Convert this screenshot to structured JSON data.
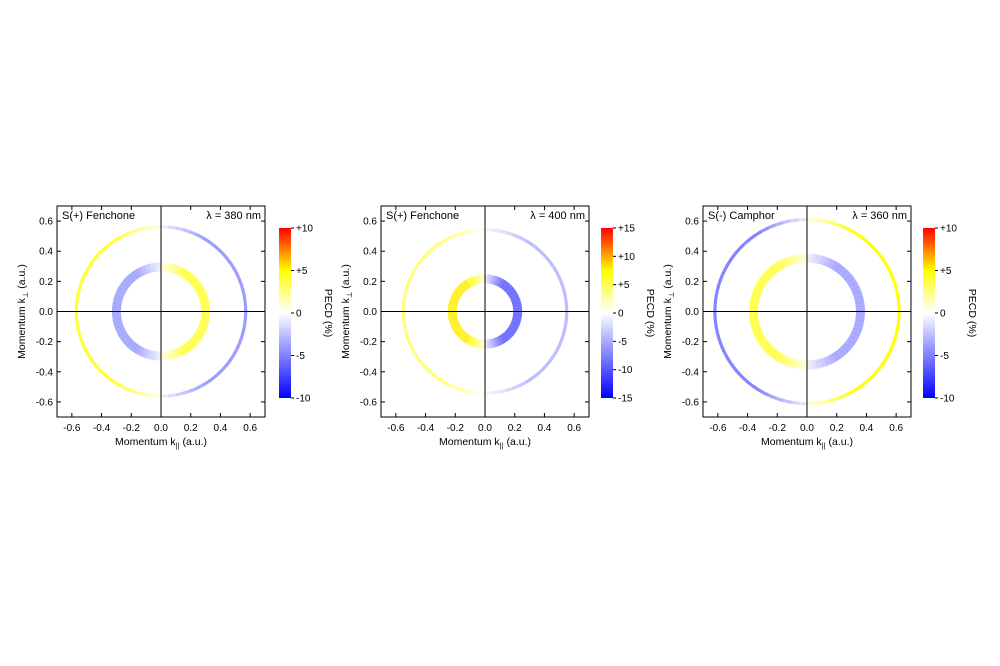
{
  "chart_data": [
    {
      "type": "heatmap",
      "title": "S(+) Fenchone",
      "wavelength": "λ = 380 nm",
      "xlabel": "Momentum k",
      "xlabel_sub": "||",
      "xlabel_unit": " (a.u.)",
      "ylabel": "Momentum k",
      "ylabel_sub": "⊥",
      "ylabel_unit": " (a.u.)",
      "xlim": [
        -0.7,
        0.7
      ],
      "ylim": [
        -0.7,
        0.7
      ],
      "xticks": [
        "-0.6",
        "-0.4",
        "-0.2",
        "0.0",
        "0.2",
        "0.4",
        "0.6"
      ],
      "yticks": [
        "0.6",
        "0.4",
        "0.2",
        "0.0",
        "-0.2",
        "-0.4",
        "-0.6"
      ],
      "colorbar": {
        "label": "PECD (%)",
        "range": [
          -10,
          10
        ],
        "ticks": [
          "+10",
          "+5",
          "0",
          "-5",
          "-10"
        ]
      },
      "rings": [
        {
          "radius": 0.57,
          "pecd_left": 4,
          "pecd_right": -4
        },
        {
          "radius": 0.3,
          "pecd_left": -4,
          "pecd_right": 4
        }
      ]
    },
    {
      "type": "heatmap",
      "title": "S(+) Fenchone",
      "wavelength": "λ = 400 nm",
      "xlabel": "Momentum k",
      "xlabel_sub": "||",
      "xlabel_unit": " (a.u.)",
      "ylabel": "Momentum k",
      "ylabel_sub": "⊥",
      "ylabel_unit": " (a.u.)",
      "xlim": [
        -0.7,
        0.7
      ],
      "ylim": [
        -0.7,
        0.7
      ],
      "xticks": [
        "-0.6",
        "-0.4",
        "-0.2",
        "0.0",
        "0.2",
        "0.4",
        "0.6"
      ],
      "yticks": [
        "0.6",
        "0.4",
        "0.2",
        "0.0",
        "-0.2",
        "-0.4",
        "-0.6"
      ],
      "colorbar": {
        "label": "PECD (%)",
        "range": [
          -15,
          15
        ],
        "ticks": [
          "+15",
          "+10",
          "+5",
          "0",
          "-5",
          "-10",
          "-15"
        ]
      },
      "rings": [
        {
          "radius": 0.55,
          "pecd_left": 4,
          "pecd_right": -4
        },
        {
          "radius": 0.22,
          "pecd_left": 8,
          "pecd_right": -10
        }
      ]
    },
    {
      "type": "heatmap",
      "title": "S(-) Camphor",
      "wavelength": "λ = 360 nm",
      "xlabel": "Momentum k",
      "xlabel_sub": "||",
      "xlabel_unit": " (a.u.)",
      "ylabel": "Momentum k",
      "ylabel_sub": "⊥",
      "ylabel_unit": " (a.u.)",
      "xlim": [
        -0.7,
        0.7
      ],
      "ylim": [
        -0.7,
        0.7
      ],
      "xticks": [
        "-0.6",
        "-0.4",
        "-0.2",
        "0.0",
        "0.2",
        "0.4",
        "0.6"
      ],
      "yticks": [
        "0.6",
        "0.4",
        "0.2",
        "0.0",
        "-0.2",
        "-0.4",
        "-0.6"
      ],
      "colorbar": {
        "label": "PECD (%)",
        "range": [
          -10,
          10
        ],
        "ticks": [
          "+10",
          "+5",
          "0",
          "-5",
          "-10"
        ]
      },
      "rings": [
        {
          "radius": 0.62,
          "pecd_left": -5,
          "pecd_right": 5
        },
        {
          "radius": 0.36,
          "pecd_left": 4,
          "pecd_right": -4
        }
      ]
    }
  ],
  "colors": {
    "positive_max": "#ff0000",
    "positive_mid": "#ffff00",
    "zero": "#ffffff",
    "negative_max": "#0000ff"
  }
}
